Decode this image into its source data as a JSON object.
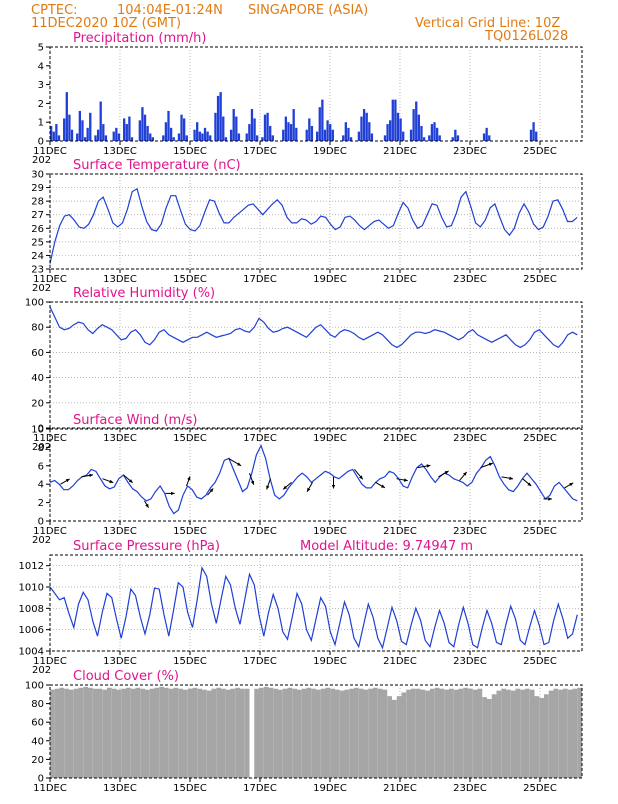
{
  "header": {
    "source": "CPTEC:",
    "coords": "104:04E-01:24N",
    "location": "SINGAPORE (ASIA)",
    "datetime": "11DEC2020 10Z (GMT)",
    "grid_note": "Vertical Grid Line: 10Z",
    "code": "TQ0126L028"
  },
  "colors": {
    "line": "#1f3fd6",
    "bar": "#1f3fd6",
    "cloud": "#a6a6a6",
    "title": "#e0148c",
    "header": "#e07b14"
  },
  "x_axis": {
    "labels": [
      "11DEC",
      "13DEC",
      "15DEC",
      "17DEC",
      "19DEC",
      "21DEC",
      "23DEC",
      "25DEC"
    ],
    "year_fragment": "202"
  },
  "chart_data": [
    {
      "type": "bar",
      "title": "Precipitation (mm/h)",
      "ylim": [
        0,
        5
      ],
      "yticks": [
        "0",
        "1",
        "2",
        "3",
        "4",
        "5"
      ],
      "days": [
        11,
        26.2
      ],
      "values": [
        0.8,
        0.5,
        0.9,
        0.3,
        0.0,
        1.2,
        2.6,
        1.4,
        0.6,
        0.0,
        0.4,
        1.6,
        1.1,
        0.2,
        0.7,
        1.5,
        0.0,
        0.3,
        0.6,
        2.1,
        0.9,
        0.3,
        0.0,
        0.0,
        0.5,
        0.7,
        0.4,
        0.0,
        1.2,
        0.9,
        1.3,
        0.2,
        0.0,
        0.0,
        1.1,
        1.8,
        1.4,
        0.8,
        0.4,
        0.2,
        0.0,
        0.0,
        0.0,
        0.3,
        1.0,
        1.6,
        0.7,
        0.2,
        0.0,
        0.4,
        1.4,
        1.2,
        0.3,
        0.0,
        0.0,
        0.6,
        1.0,
        0.5,
        0.4,
        0.7,
        0.5,
        0.3,
        0.0,
        1.5,
        2.4,
        2.6,
        1.3,
        0.2,
        0.0,
        0.6,
        1.7,
        1.3,
        0.4,
        0.0,
        0.0,
        0.4,
        0.9,
        1.7,
        1.2,
        0.3,
        0.0,
        0.2,
        1.4,
        1.5,
        0.8,
        0.3,
        0.0,
        0.0,
        0.0,
        0.6,
        1.3,
        1.0,
        0.9,
        1.7,
        0.7,
        0.0,
        0.0,
        0.0,
        0.6,
        1.2,
        0.8,
        0.0,
        0.5,
        1.8,
        2.2,
        0.6,
        1.1,
        0.9,
        0.6,
        0.0,
        0.0,
        0.0,
        0.3,
        1.0,
        0.7,
        0.2,
        0.0,
        0.0,
        0.5,
        1.3,
        1.7,
        1.5,
        1.0,
        0.4,
        0.0,
        0.0,
        0.0,
        0.0,
        0.3,
        0.9,
        1.1,
        2.2,
        2.2,
        1.5,
        1.2,
        0.5,
        0.0,
        0.0,
        0.6,
        1.7,
        2.1,
        1.4,
        0.8,
        0.2,
        0.0,
        0.3,
        0.9,
        1.0,
        0.7,
        0.3,
        0.0,
        0.0,
        0.0,
        0.0,
        0.2,
        0.6,
        0.3,
        0.0,
        0.0,
        0.0,
        0.0,
        0.0,
        0.0,
        0.0,
        0.0,
        0.0,
        0.4,
        0.7,
        0.3,
        0.0,
        0.0,
        0.0,
        0.0,
        0.0,
        0.0,
        0.0,
        0.0,
        0.0,
        0.0,
        0.0,
        0.0,
        0.0,
        0.0,
        0.0,
        0.6,
        1.0,
        0.5,
        0.0,
        0.0,
        0.0,
        0.0,
        0.0,
        0.0,
        0.0,
        0.0,
        0.0,
        0.0,
        0.0,
        0.0,
        0.0,
        0.0,
        0.0,
        0.0,
        0.0
      ]
    },
    {
      "type": "line",
      "title": "Surface Temperature (nC)",
      "ylim": [
        23,
        30
      ],
      "yticks": [
        "23",
        "24",
        "25",
        "26",
        "27",
        "28",
        "29",
        "30"
      ],
      "days": [
        11,
        26.2
      ],
      "values": [
        23.4,
        25.0,
        26.2,
        26.9,
        27.0,
        26.6,
        26.1,
        26.0,
        26.3,
        27.0,
        28.0,
        28.3,
        27.4,
        26.4,
        26.1,
        26.4,
        27.4,
        28.7,
        28.9,
        27.6,
        26.5,
        25.9,
        25.8,
        26.3,
        27.5,
        28.4,
        28.4,
        27.3,
        26.3,
        25.9,
        25.8,
        26.2,
        27.2,
        28.1,
        28.0,
        27.1,
        26.4,
        26.4,
        26.8,
        27.1,
        27.4,
        27.7,
        27.8,
        27.4,
        27.0,
        27.4,
        27.8,
        28.1,
        27.7,
        26.8,
        26.4,
        26.4,
        26.7,
        26.6,
        26.3,
        26.5,
        26.9,
        26.8,
        26.3,
        25.9,
        26.1,
        26.8,
        26.9,
        26.6,
        26.2,
        25.9,
        26.2,
        26.5,
        26.6,
        26.3,
        26.0,
        26.2,
        27.1,
        27.9,
        27.5,
        26.6,
        26.0,
        26.2,
        27.0,
        27.8,
        27.7,
        26.8,
        26.1,
        26.2,
        27.1,
        28.3,
        28.7,
        27.6,
        26.4,
        26.1,
        26.6,
        27.5,
        27.8,
        26.8,
        25.9,
        25.5,
        26.0,
        27.1,
        27.8,
        27.2,
        26.3,
        25.9,
        26.1,
        26.9,
        28.0,
        28.1,
        27.4,
        26.5,
        26.5,
        26.8
      ],
      "grid": true
    },
    {
      "type": "line",
      "title": "Relative Humidity (%)",
      "ylim": [
        0,
        100
      ],
      "yticks": [
        "0",
        "20",
        "40",
        "60",
        "80",
        "100"
      ],
      "days": [
        11,
        26.2
      ],
      "values": [
        96,
        88,
        80,
        78,
        79,
        82,
        84,
        83,
        78,
        75,
        79,
        82,
        80,
        78,
        74,
        70,
        71,
        76,
        78,
        74,
        68,
        66,
        70,
        76,
        78,
        74,
        72,
        70,
        68,
        70,
        72,
        72,
        74,
        76,
        74,
        72,
        73,
        74,
        75,
        78,
        79,
        77,
        76,
        80,
        87,
        84,
        79,
        76,
        77,
        79,
        80,
        78,
        76,
        74,
        72,
        76,
        80,
        82,
        78,
        74,
        72,
        76,
        78,
        77,
        75,
        72,
        70,
        72,
        74,
        76,
        74,
        70,
        66,
        64,
        66,
        70,
        74,
        76,
        76,
        75,
        76,
        78,
        77,
        76,
        74,
        72,
        70,
        72,
        76,
        78,
        74,
        72,
        70,
        68,
        70,
        72,
        74,
        70,
        66,
        64,
        66,
        70,
        76,
        78,
        74,
        70,
        66,
        64,
        68,
        74,
        76,
        74
      ],
      "grid": true
    },
    {
      "type": "line",
      "title": "Surface Wind (m/s)",
      "ylim": [
        0,
        10
      ],
      "yticks": [
        "0",
        "2",
        "4",
        "6",
        "8",
        "10"
      ],
      "days": [
        11,
        26.2
      ],
      "values": [
        4.2,
        4.4,
        4.0,
        3.4,
        3.4,
        3.8,
        4.4,
        4.8,
        5.0,
        5.6,
        5.4,
        4.6,
        3.8,
        3.5,
        3.7,
        4.6,
        5.0,
        4.2,
        3.5,
        3.2,
        2.6,
        2.2,
        2.4,
        3.2,
        3.8,
        3.0,
        1.6,
        0.8,
        1.2,
        2.8,
        3.8,
        3.4,
        2.6,
        2.4,
        2.8,
        3.6,
        4.2,
        5.2,
        6.6,
        6.8,
        5.6,
        4.4,
        3.2,
        3.6,
        5.2,
        7.2,
        8.2,
        6.8,
        4.6,
        2.8,
        2.4,
        2.8,
        3.6,
        4.2,
        4.8,
        5.2,
        4.8,
        4.2,
        4.6,
        5.0,
        5.4,
        5.2,
        4.8,
        4.6,
        5.0,
        5.4,
        5.6,
        4.8,
        4.0,
        3.6,
        3.6,
        4.2,
        4.6,
        4.8,
        5.4,
        5.2,
        4.6,
        3.8,
        3.6,
        4.8,
        5.8,
        6.2,
        5.6,
        4.8,
        4.2,
        4.8,
        5.2,
        5.0,
        4.6,
        4.4,
        4.2,
        3.8,
        4.2,
        5.2,
        5.8,
        6.6,
        7.0,
        6.0,
        4.8,
        4.0,
        3.4,
        3.2,
        3.8,
        4.6,
        5.2,
        4.6,
        4.0,
        3.2,
        2.4,
        2.8,
        3.8,
        4.2,
        3.6,
        3.0,
        2.4,
        2.2
      ]
    },
    {
      "type": "line",
      "title": "Surface Pressure (hPa)",
      "annotation": "Model Altitude: 9.74947 m",
      "ylim": [
        1004,
        1013
      ],
      "yticks": [
        "1004",
        "1006",
        "1008",
        "1010",
        "1012"
      ],
      "days": [
        11,
        26.2
      ],
      "values": [
        1010.0,
        1009.4,
        1008.8,
        1009.0,
        1007.5,
        1006.2,
        1008.4,
        1009.5,
        1008.8,
        1006.8,
        1005.4,
        1007.6,
        1009.4,
        1009.0,
        1007.0,
        1005.2,
        1007.2,
        1009.8,
        1009.2,
        1007.2,
        1005.6,
        1007.4,
        1009.9,
        1009.8,
        1007.4,
        1005.4,
        1007.8,
        1010.4,
        1010.0,
        1007.6,
        1006.2,
        1008.8,
        1011.8,
        1011.0,
        1008.4,
        1006.6,
        1008.8,
        1011.0,
        1010.2,
        1008.0,
        1006.5,
        1008.8,
        1011.2,
        1010.2,
        1007.4,
        1005.4,
        1007.6,
        1009.3,
        1008.0,
        1005.8,
        1005.1,
        1007.2,
        1009.4,
        1008.4,
        1006.0,
        1005.0,
        1007.0,
        1009.0,
        1008.2,
        1005.8,
        1004.6,
        1006.6,
        1008.6,
        1007.4,
        1005.2,
        1004.4,
        1006.4,
        1008.4,
        1007.2,
        1005.2,
        1004.3,
        1006.2,
        1008.1,
        1006.8,
        1004.9,
        1004.6,
        1006.4,
        1008.0,
        1006.9,
        1005.0,
        1004.4,
        1006.2,
        1007.8,
        1006.6,
        1004.8,
        1004.4,
        1006.4,
        1008.1,
        1006.6,
        1004.6,
        1004.3,
        1006.2,
        1007.8,
        1006.6,
        1004.8,
        1004.6,
        1006.5,
        1008.2,
        1007.0,
        1005.0,
        1004.6,
        1006.3,
        1007.8,
        1006.4,
        1004.6,
        1004.8,
        1006.8,
        1008.4,
        1007.0,
        1005.2,
        1005.6,
        1007.4
      ],
      "grid": true
    },
    {
      "type": "bar",
      "title": "Cloud Cover (%)",
      "ylim": [
        0,
        100
      ],
      "yticks": [
        "0",
        "20",
        "40",
        "60",
        "80",
        "100"
      ],
      "days": [
        11,
        26.2
      ],
      "values": [
        95,
        96,
        97,
        96,
        95,
        96,
        97,
        98,
        97,
        96,
        96,
        95,
        97,
        96,
        95,
        96,
        97,
        96,
        97,
        96,
        95,
        96,
        97,
        98,
        97,
        96,
        97,
        96,
        95,
        96,
        97,
        96,
        95,
        94,
        96,
        97,
        96,
        95,
        96,
        97,
        96,
        96,
        0,
        96,
        97,
        98,
        97,
        96,
        95,
        96,
        97,
        96,
        95,
        96,
        97,
        96,
        95,
        96,
        97,
        96,
        95,
        94,
        95,
        96,
        97,
        96,
        95,
        96,
        97,
        96,
        95,
        88,
        84,
        88,
        92,
        95,
        96,
        96,
        95,
        94,
        96,
        97,
        96,
        95,
        96,
        95,
        96,
        97,
        96,
        95,
        96,
        87,
        85,
        90,
        94,
        96,
        95,
        94,
        96,
        95,
        96,
        95,
        88,
        86,
        90,
        94,
        96,
        95,
        96,
        95,
        96,
        97
      ]
    }
  ]
}
